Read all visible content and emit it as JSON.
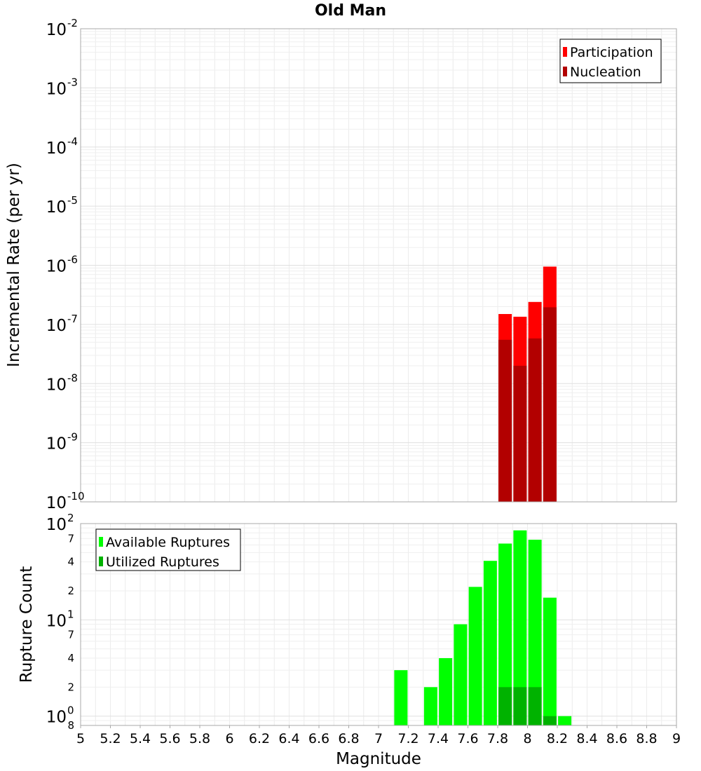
{
  "chart_data": [
    {
      "type": "bar",
      "title": "Old Man",
      "xlabel": "Magnitude",
      "ylabel": "Incremental Rate (per yr)",
      "xlim": [
        5,
        9
      ],
      "ylim": [
        1e-10,
        0.01
      ],
      "yscale": "log",
      "x_ticks": [
        "5",
        "5.2",
        "5.4",
        "5.6",
        "5.8",
        "6",
        "6.2",
        "6.4",
        "6.6",
        "6.8",
        "7",
        "7.2",
        "7.4",
        "7.6",
        "7.8",
        "8",
        "8.2",
        "8.4",
        "8.6",
        "8.8",
        "9"
      ],
      "y_ticks": [
        {
          "base": "10",
          "exp": "-2"
        },
        {
          "base": "10",
          "exp": "-3"
        },
        {
          "base": "10",
          "exp": "-4"
        },
        {
          "base": "10",
          "exp": "-5"
        },
        {
          "base": "10",
          "exp": "-6"
        },
        {
          "base": "10",
          "exp": "-7"
        },
        {
          "base": "10",
          "exp": "-8"
        },
        {
          "base": "10",
          "exp": "-9"
        },
        {
          "base": "10",
          "exp": "-10"
        }
      ],
      "grid": true,
      "legend_position": "top-right",
      "x": [
        7.85,
        7.95,
        8.05,
        8.15
      ],
      "series": [
        {
          "name": "Participation",
          "color": "#ff0000",
          "values": [
            1.5e-07,
            1.35e-07,
            2.4e-07,
            9.5e-07
          ]
        },
        {
          "name": "Nucleation",
          "color": "#b20000",
          "values": [
            5.5e-08,
            2e-08,
            5.8e-08,
            1.95e-07
          ]
        }
      ]
    },
    {
      "type": "bar",
      "xlabel": "Magnitude",
      "ylabel": "Rupture Count",
      "xlim": [
        5,
        9
      ],
      "ylim": [
        0.8,
        100
      ],
      "yscale": "log",
      "x_ticks": [
        "5",
        "5.2",
        "5.4",
        "5.6",
        "5.8",
        "6",
        "6.2",
        "6.4",
        "6.6",
        "6.8",
        "7",
        "7.2",
        "7.4",
        "7.6",
        "7.8",
        "8",
        "8.2",
        "8.4",
        "8.6",
        "8.8",
        "9"
      ],
      "y_ticks": [
        {
          "base": "10",
          "exp": "2"
        },
        {
          "base": "10",
          "exp": "1"
        },
        {
          "base": "10",
          "exp": "0"
        }
      ],
      "y_minor_tick_labels": [
        {
          "value": 70,
          "label": "7"
        },
        {
          "value": 40,
          "label": "4"
        },
        {
          "value": 20,
          "label": "2"
        },
        {
          "value": 7,
          "label": "7"
        },
        {
          "value": 4,
          "label": "4"
        },
        {
          "value": 2,
          "label": "2"
        },
        {
          "value": 0.8,
          "label": "8"
        }
      ],
      "grid": true,
      "legend_position": "top-left",
      "x": [
        7.15,
        7.35,
        7.45,
        7.55,
        7.65,
        7.75,
        7.85,
        7.95,
        8.05,
        8.15,
        8.25
      ],
      "series": [
        {
          "name": "Available Ruptures",
          "color": "#00ff00",
          "values": [
            3,
            2,
            4,
            9,
            22,
            41,
            62,
            85,
            68,
            17,
            1
          ]
        },
        {
          "name": "Utilized Ruptures",
          "color": "#00b200",
          "values": [
            0,
            0,
            0,
            0,
            0,
            0,
            2,
            2,
            2,
            1,
            0
          ]
        }
      ]
    }
  ]
}
